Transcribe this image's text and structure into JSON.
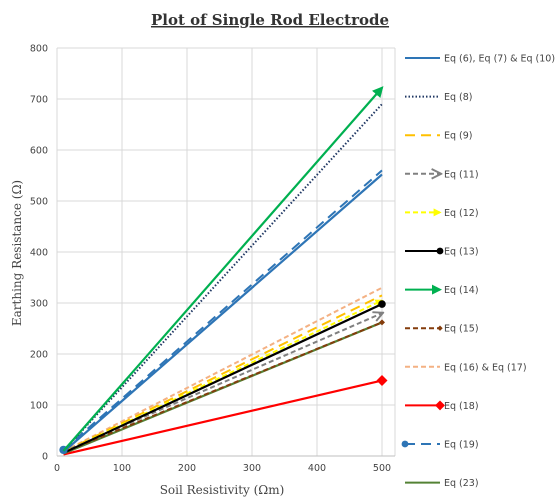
{
  "chart_data": {
    "type": "line",
    "title": "Plot of Single Rod Electrode",
    "xlabel": "Soil Resistivity (Ωm)",
    "ylabel": "Earthing Resistance (Ω)",
    "xlim": [
      0,
      520
    ],
    "ylim": [
      0,
      800
    ],
    "xticks": [
      0,
      100,
      200,
      300,
      400,
      500
    ],
    "yticks": [
      0,
      100,
      200,
      300,
      400,
      500,
      600,
      700,
      800
    ],
    "grid": true,
    "legend_position": "right",
    "x": [
      10,
      500
    ],
    "series": [
      {
        "name": "Eq (6), Eq (7) & Eq (10)",
        "values": [
          8,
          552
        ],
        "color": "#2e75b6",
        "dash": "solid",
        "marker": "none"
      },
      {
        "name": "Eq (8)",
        "values": [
          10,
          690
        ],
        "color": "#203864",
        "dash": "dot",
        "marker": "none"
      },
      {
        "name": "Eq (9)",
        "values": [
          8,
          315
        ],
        "color": "#ffc000",
        "dash": "longdash",
        "marker": "none"
      },
      {
        "name": "Eq (11)",
        "values": [
          8,
          280
        ],
        "color": "#808080",
        "dash": "dash",
        "marker": "open-arrow"
      },
      {
        "name": "Eq (12)",
        "values": [
          7,
          305
        ],
        "color": "#ffff00",
        "dash": "dash",
        "marker": "arrow"
      },
      {
        "name": "Eq (13)",
        "values": [
          6,
          298
        ],
        "color": "#000000",
        "dash": "solid",
        "marker": "circle"
      },
      {
        "name": "Eq (14)",
        "values": [
          10,
          722
        ],
        "color": "#00b050",
        "dash": "solid",
        "marker": "arrow"
      },
      {
        "name": "Eq (15)",
        "values": [
          7,
          262
        ],
        "color": "#843c0c",
        "dash": "dash",
        "marker": "diamond-small"
      },
      {
        "name": "Eq (16) & Eq (17)",
        "values": [
          9,
          330
        ],
        "color": "#f4b183",
        "dash": "dash",
        "marker": "none"
      },
      {
        "name": "Eq (18)",
        "values": [
          3,
          148
        ],
        "color": "#ff0000",
        "dash": "solid",
        "marker": "diamond"
      },
      {
        "name": "Eq (19)",
        "values": [
          12,
          560
        ],
        "color": "#2e75b6",
        "dash": "longdash",
        "marker": "circle-start"
      },
      {
        "name": "Eq (23)",
        "values": [
          5,
          262
        ],
        "color": "#548235",
        "dash": "solid",
        "marker": "none"
      }
    ]
  }
}
